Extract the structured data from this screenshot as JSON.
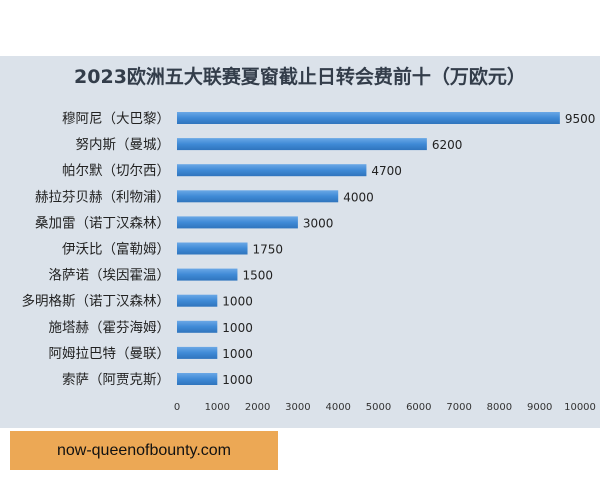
{
  "chart_data": {
    "type": "bar",
    "orientation": "horizontal",
    "title": "2023欧洲五大联赛夏窗截止日转会费前十（万欧元）",
    "categories": [
      "穆阿尼（大巴黎）",
      "努内斯（曼城）",
      "帕尔默（切尔西）",
      "赫拉芬贝赫（利物浦）",
      "桑加雷（诺丁汉森林）",
      "伊沃比（富勒姆）",
      "洛萨诺（埃因霍温）",
      "多明格斯（诺丁汉森林）",
      "施塔赫（霍芬海姆）",
      "阿姆拉巴特（曼联）",
      "索萨（阿贾克斯）"
    ],
    "values": [
      9500,
      6200,
      4700,
      4000,
      3000,
      1750,
      1500,
      1000,
      1000,
      1000,
      1000
    ],
    "xlim": [
      0,
      10000
    ],
    "xticks": [
      "0",
      "1000",
      "2000",
      "3000",
      "4000",
      "5000",
      "6000",
      "7000",
      "8000",
      "9000",
      "10000"
    ],
    "grid": false,
    "bar_color": "#3f8ad6",
    "background": "#dbe2ea"
  },
  "watermark": "now-queenofbounty.com"
}
